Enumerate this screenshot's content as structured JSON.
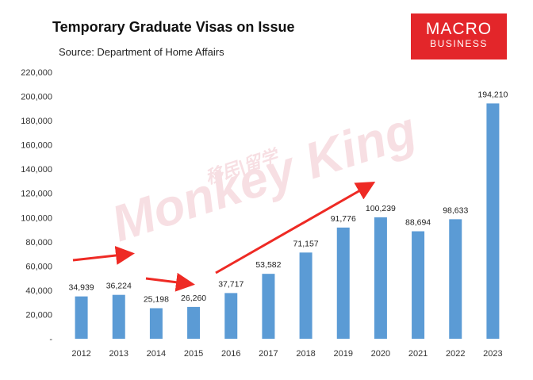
{
  "header": {
    "title": "Temporary Graduate Visas on Issue",
    "subtitle": "Source: Department of Home Affairs",
    "logo_line1": "MACRO",
    "logo_line2": "BUSINESS"
  },
  "colors": {
    "bar": "#5b9bd5",
    "arrow": "#ee2a24",
    "logo": "#e3262a"
  },
  "watermark": [
    "Monkey King",
    "移民|留学"
  ],
  "chart_data": {
    "type": "bar",
    "categories": [
      "2012",
      "2013",
      "2014",
      "2015",
      "2016",
      "2017",
      "2018",
      "2019",
      "2020",
      "2021",
      "2022",
      "2023"
    ],
    "values": [
      34939,
      36224,
      25198,
      26260,
      37717,
      53582,
      71157,
      91776,
      100239,
      88694,
      98633,
      194210
    ],
    "data_labels": [
      "34,939",
      "36,224",
      "25,198",
      "26,260",
      "37,717",
      "53,582",
      "71,157",
      "91,776",
      "100,239",
      "88,694",
      "98,633",
      "194,210"
    ],
    "ylim": [
      0,
      220000
    ],
    "ytick_labels": [
      "-",
      "20,000",
      "40,000",
      "60,000",
      "80,000",
      "100,000",
      "120,000",
      "140,000",
      "160,000",
      "180,000",
      "200,000",
      "220,000"
    ],
    "grid": false,
    "title": "Temporary Graduate Visas on Issue"
  }
}
